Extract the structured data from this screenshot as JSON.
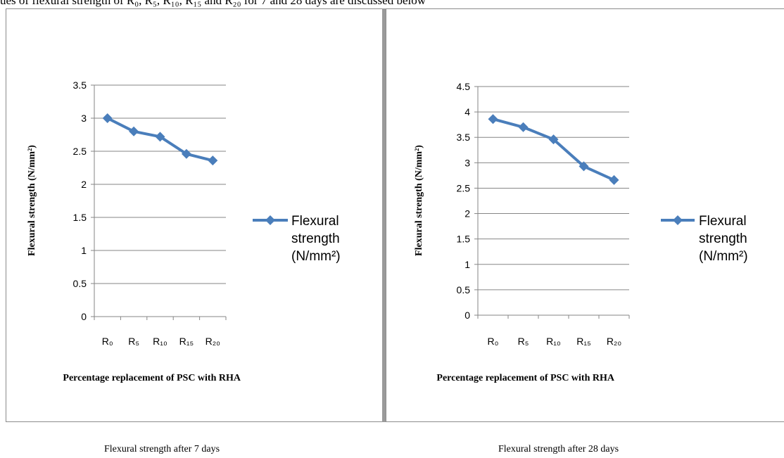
{
  "top_text": "ues of flexural strength of R₀, R₅, R₁₀, R₁₅ and R₂₀ for 7 and 28 days are discussed below",
  "captions": [
    "Flexural strength after 7 days",
    "Flexural strength after 28 days"
  ],
  "colors": {
    "series": "#4a7ebb",
    "grid": "#868686",
    "axis": "#868686"
  },
  "chart_data": [
    {
      "type": "line",
      "categories": [
        "R₀",
        "R₅",
        "R₁₀",
        "R₁₅",
        "R₂₀"
      ],
      "series": [
        {
          "name": "Flexural strength (N/mm²)",
          "legend_lines": [
            "Flexural",
            "strength",
            "(N/mm²)"
          ],
          "values": [
            3.0,
            2.8,
            2.72,
            2.46,
            2.36
          ]
        }
      ],
      "xlabel": "Percentage replacement of PSC with RHA",
      "ylabel": "Flexural strength (N/mm²)",
      "ylim": [
        0,
        3.5
      ],
      "yticks": [
        "0",
        "0.5",
        "1",
        "1.5",
        "2",
        "2.5",
        "3",
        "3.5"
      ],
      "grid": true,
      "legend": "right",
      "marker": "diamond"
    },
    {
      "type": "line",
      "categories": [
        "R₀",
        "R₅",
        "R₁₀",
        "R₁₅",
        "R₂₀"
      ],
      "series": [
        {
          "name": "Flexural strength (N/mm²)",
          "legend_lines": [
            "Flexural",
            "strength",
            "(N/mm²)"
          ],
          "values": [
            3.86,
            3.7,
            3.46,
            2.93,
            2.66
          ]
        }
      ],
      "xlabel": "Percentage replacement of PSC with RHA",
      "ylabel": "Flexural strength (N/mm²)",
      "ylim": [
        0,
        4.5
      ],
      "yticks": [
        "0",
        "0.5",
        "1",
        "1.5",
        "2",
        "2.5",
        "3",
        "3.5",
        "4",
        "4.5"
      ],
      "grid": true,
      "legend": "right",
      "marker": "diamond"
    }
  ]
}
